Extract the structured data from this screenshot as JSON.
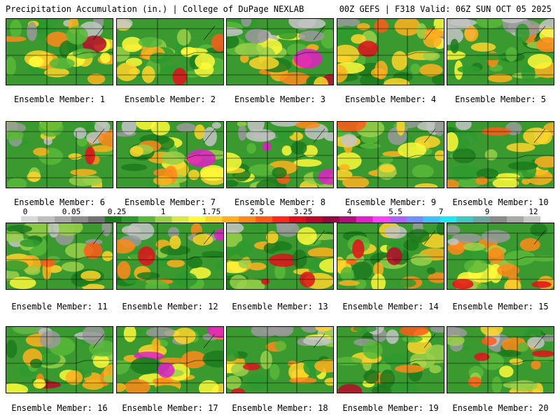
{
  "header": {
    "title_left": "Precipitation Accumulation (in.) | College of DuPage NEXLAB",
    "title_right": "00Z GEFS | F318 Valid: 06Z SUN OCT 05 2025"
  },
  "colorbar": {
    "labels": [
      "0",
      "0.05",
      "0.25",
      "1",
      "1.75",
      "2.5",
      "3.25",
      "4",
      "5.5",
      "7",
      "9",
      "12"
    ],
    "colors": [
      "#d9d9d9",
      "#bfbfbf",
      "#a6a6a6",
      "#8c8c8c",
      "#737373",
      "#1c7a1c",
      "#2e9a2e",
      "#58b83a",
      "#9ad04a",
      "#d8e84a",
      "#fffa3a",
      "#ffd52a",
      "#ffb01e",
      "#ff8a1a",
      "#ff5a1a",
      "#ff2a1a",
      "#e0101a",
      "#b80a2a",
      "#900a40",
      "#b0107a",
      "#e020c8",
      "#ff40ff",
      "#b060ff",
      "#7090ff",
      "#40c0ff",
      "#20e8f0",
      "#40c8c0",
      "#6aa6a0",
      "#8a8a8a",
      "#a8a8a8",
      "#c8c8c8"
    ]
  },
  "caption_prefix": "Ensemble Member:",
  "members": [
    {
      "number": "1"
    },
    {
      "number": "2"
    },
    {
      "number": "3"
    },
    {
      "number": "4"
    },
    {
      "number": "5"
    },
    {
      "number": "6"
    },
    {
      "number": "7"
    },
    {
      "number": "8"
    },
    {
      "number": "9"
    },
    {
      "number": "10"
    },
    {
      "number": "11"
    },
    {
      "number": "12"
    },
    {
      "number": "13"
    },
    {
      "number": "14"
    },
    {
      "number": "15"
    },
    {
      "number": "16"
    },
    {
      "number": "17"
    },
    {
      "number": "18"
    },
    {
      "number": "19"
    },
    {
      "number": "20"
    }
  ]
}
